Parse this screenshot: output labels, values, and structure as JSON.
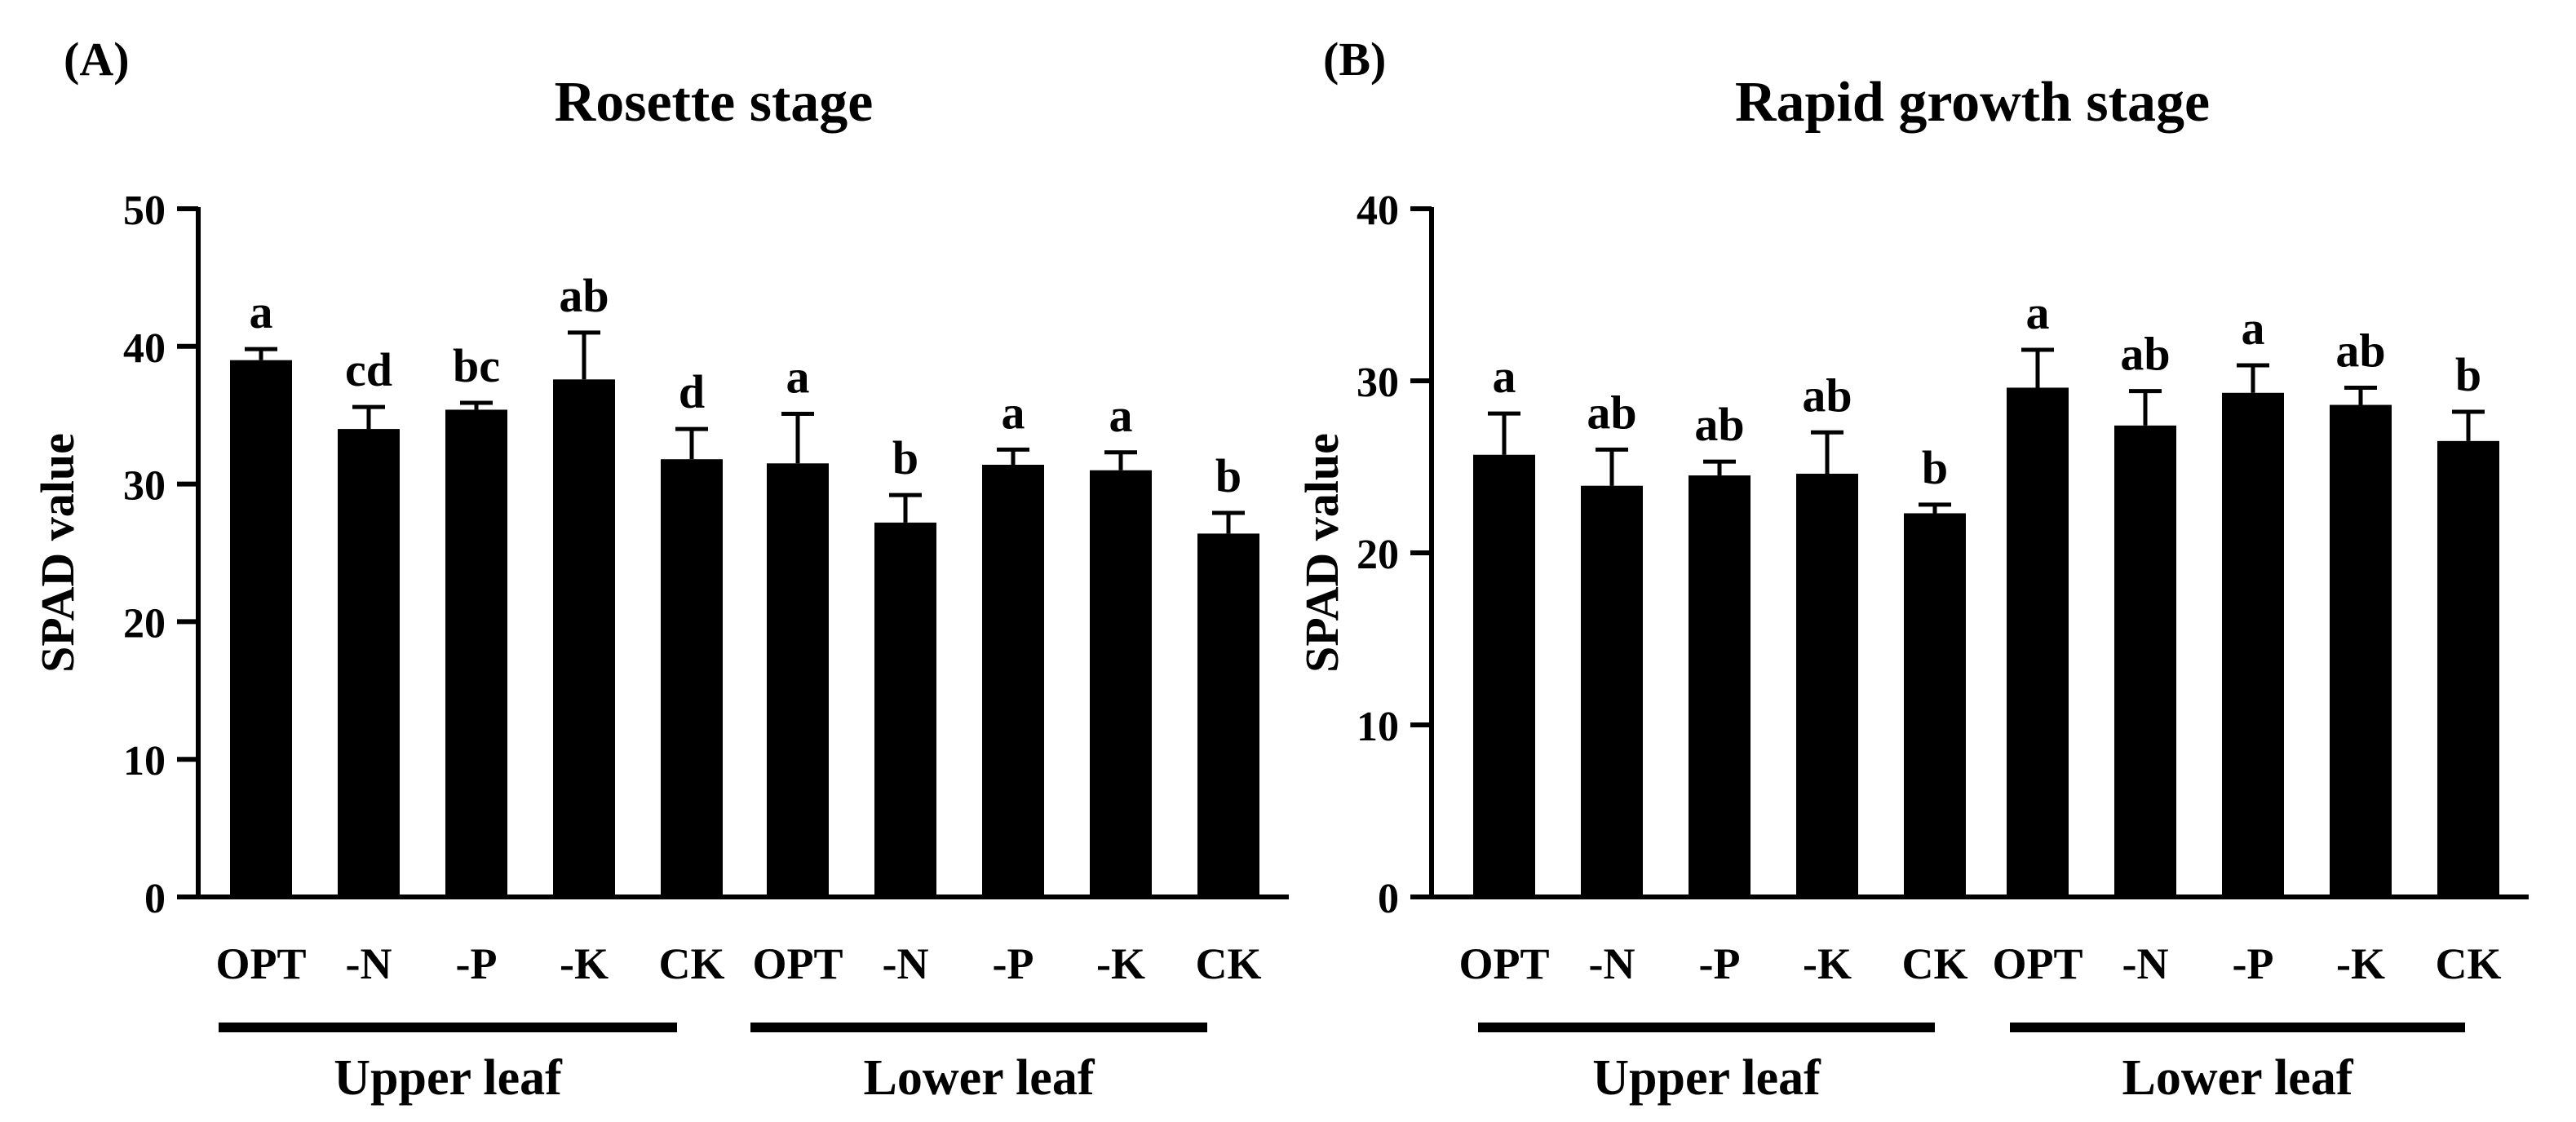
{
  "chart_data": [
    {
      "type": "bar",
      "panel_label": "(A)",
      "title": "Rosette stage",
      "ylabel": "SPAD value",
      "xlabel": "",
      "ylim": [
        0,
        50
      ],
      "yticks": [
        0,
        10,
        20,
        30,
        40,
        50
      ],
      "groups": [
        {
          "name": "Upper leaf",
          "categories": [
            "OPT",
            "-N",
            "-P",
            "-K",
            "CK"
          ],
          "values": [
            39.0,
            34.0,
            35.4,
            37.6,
            31.8
          ],
          "errors": [
            0.8,
            1.6,
            0.5,
            3.4,
            2.2
          ],
          "letters": [
            "a",
            "cd",
            "bc",
            "ab",
            "d"
          ]
        },
        {
          "name": "Lower leaf",
          "categories": [
            "OPT",
            "-N",
            "-P",
            "-K",
            "CK"
          ],
          "values": [
            31.5,
            27.2,
            31.4,
            31.0,
            26.4
          ],
          "errors": [
            3.6,
            2.0,
            1.1,
            1.3,
            1.5
          ],
          "letters": [
            "a",
            "b",
            "a",
            "a",
            "b"
          ]
        }
      ]
    },
    {
      "type": "bar",
      "panel_label": "(B)",
      "title": "Rapid growth stage",
      "ylabel": "SPAD value",
      "xlabel": "",
      "ylim": [
        0,
        40
      ],
      "yticks": [
        0,
        10,
        20,
        30,
        40
      ],
      "groups": [
        {
          "name": "Upper leaf",
          "categories": [
            "OPT",
            "-N",
            "-P",
            "-K",
            "CK"
          ],
          "values": [
            25.7,
            23.9,
            24.5,
            24.6,
            22.3
          ],
          "errors": [
            2.4,
            2.1,
            0.8,
            2.4,
            0.5
          ],
          "letters": [
            "a",
            "ab",
            "ab",
            "ab",
            "b"
          ]
        },
        {
          "name": "Lower leaf",
          "categories": [
            "OPT",
            "-N",
            "-P",
            "-K",
            "CK"
          ],
          "values": [
            29.6,
            27.4,
            29.3,
            28.6,
            26.5
          ],
          "errors": [
            2.2,
            2.0,
            1.6,
            1.0,
            1.7
          ],
          "letters": [
            "a",
            "ab",
            "a",
            "ab",
            "b"
          ]
        }
      ]
    }
  ]
}
